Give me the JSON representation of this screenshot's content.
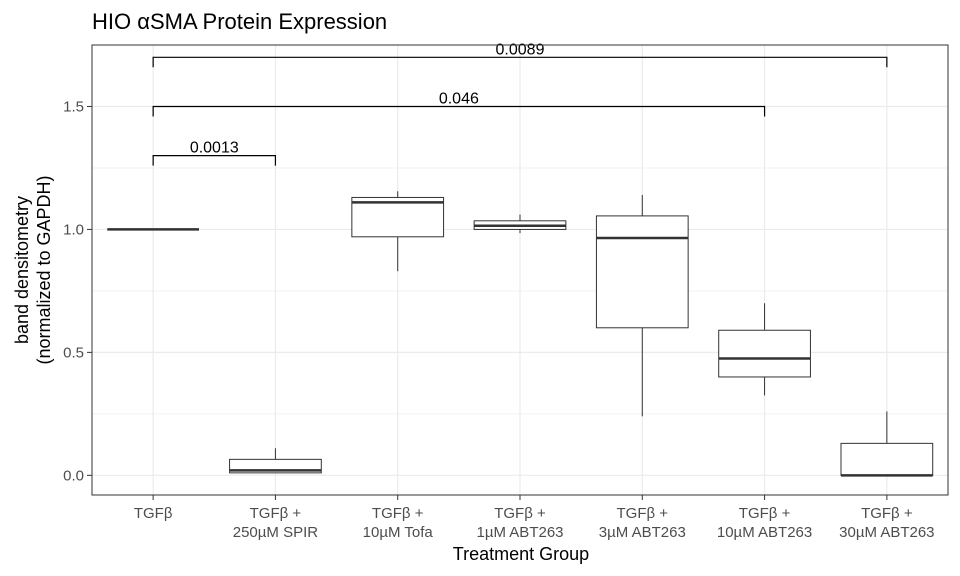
{
  "chart_data": {
    "type": "box",
    "title": "HIO αSMA Protein Expression",
    "xlabel": "Treatment Group",
    "ylabel": [
      "band densitometry",
      "(normalized to GAPDH)"
    ],
    "ylim": [
      -0.08,
      1.75
    ],
    "yticks": [
      0.0,
      0.5,
      1.0,
      1.5
    ],
    "ytick_labels": [
      "0.0",
      "0.5",
      "1.0",
      "1.5"
    ],
    "grid": true,
    "categories": [
      [
        "TGFβ"
      ],
      [
        "TGFβ +",
        "250µM SPIR"
      ],
      [
        "TGFβ +",
        "10µM Tofa"
      ],
      [
        "TGFβ +",
        "1µM ABT263"
      ],
      [
        "TGFβ +",
        "3µM ABT263"
      ],
      [
        "TGFβ +",
        "10µM ABT263"
      ],
      [
        "TGFβ +",
        "30µM ABT263"
      ]
    ],
    "boxes": [
      {
        "min": 1.0,
        "q1": 1.0,
        "median": 1.0,
        "q3": 1.0,
        "max": 1.0
      },
      {
        "min": 0.01,
        "q1": 0.01,
        "median": 0.02,
        "q3": 0.065,
        "max": 0.11
      },
      {
        "min": 0.83,
        "q1": 0.97,
        "median": 1.11,
        "q3": 1.13,
        "max": 1.155
      },
      {
        "min": 0.985,
        "q1": 1.0,
        "median": 1.015,
        "q3": 1.035,
        "max": 1.06
      },
      {
        "min": 0.24,
        "q1": 0.6,
        "median": 0.965,
        "q3": 1.055,
        "max": 1.14
      },
      {
        "min": 0.325,
        "q1": 0.4,
        "median": 0.475,
        "q3": 0.59,
        "max": 0.7
      },
      {
        "min": 0.0,
        "q1": 0.0,
        "median": 0.0,
        "q3": 0.13,
        "max": 0.26
      }
    ],
    "brackets": [
      {
        "from": 0,
        "to": 1,
        "y": 1.3,
        "label": "0.0013"
      },
      {
        "from": 0,
        "to": 5,
        "y": 1.5,
        "label": "0.046"
      },
      {
        "from": 0,
        "to": 6,
        "y": 1.7,
        "label": "0.0089"
      }
    ]
  }
}
